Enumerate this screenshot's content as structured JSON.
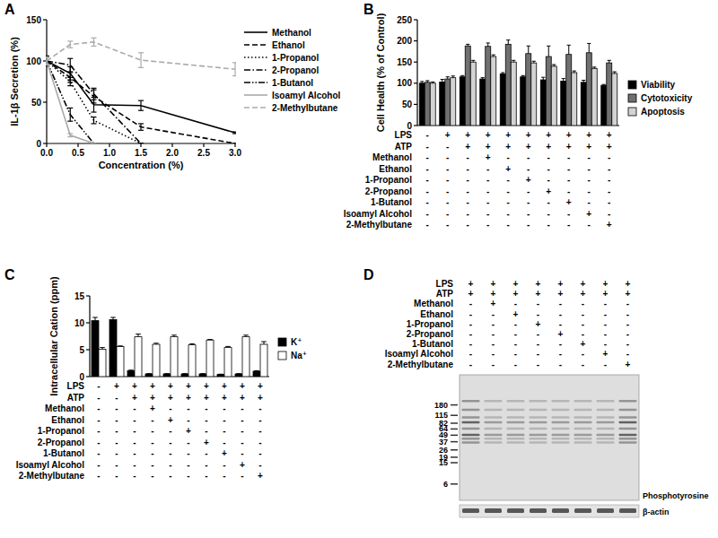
{
  "chart_data": [
    {
      "type": "line",
      "panel": "A",
      "x_label": "Concentration (%)",
      "y_label": "IL-1β Secretion (%)",
      "x": [
        0,
        0.375,
        0.75,
        1.5,
        3.0
      ],
      "xlim": [
        0,
        3
      ],
      "xticks": [
        {
          "value": 0,
          "label": "0.0"
        },
        0.5,
        {
          "value": 1,
          "label": "1.0"
        },
        1.5,
        {
          "value": 2,
          "label": "2.0"
        },
        2.5,
        {
          "value": 3,
          "label": "3.0"
        }
      ],
      "ylim": [
        0,
        150
      ],
      "yticks": [
        0,
        50,
        100,
        150
      ],
      "legend": "right",
      "series": [
        {
          "name": "Methanol",
          "color": "#000000",
          "line_style": "solid",
          "values": [
            100,
            85,
            47,
            46,
            13
          ],
          "errors": [
            6,
            8,
            9,
            6,
            1
          ]
        },
        {
          "name": "Ethanol",
          "color": "#000000",
          "line_style": "dashed",
          "values": [
            100,
            80,
            57,
            20,
            0
          ],
          "errors": [
            5,
            6,
            8,
            4,
            0
          ]
        },
        {
          "name": "1-Propanol",
          "color": "#000000",
          "line_style": "dotted",
          "values": [
            100,
            75,
            28,
            0,
            null
          ],
          "errors": [
            5,
            5,
            4,
            0,
            null
          ]
        },
        {
          "name": "2-Propanol",
          "color": "#000000",
          "line_style": "dashdot",
          "values": [
            100,
            95,
            60,
            0,
            null
          ],
          "errors": [
            5,
            8,
            7,
            0,
            null
          ]
        },
        {
          "name": "1-Butanol",
          "color": "#000000",
          "line_style": "dashdotdot",
          "values": [
            100,
            35,
            0,
            null,
            null
          ],
          "errors": [
            6,
            8,
            0,
            null,
            null
          ]
        },
        {
          "name": "Isoamyl Alcohol",
          "color": "#aaaaaa",
          "line_style": "solid",
          "values": [
            100,
            10,
            0,
            null,
            null
          ],
          "errors": [
            4,
            2,
            0,
            null,
            null
          ]
        },
        {
          "name": "2-Methylbutane",
          "color": "#aaaaaa",
          "line_style": "dashed",
          "values": [
            100,
            120,
            123,
            101,
            90
          ],
          "errors": [
            5,
            4,
            5,
            9,
            8
          ]
        }
      ]
    },
    {
      "type": "bar",
      "panel": "B",
      "y_label": "Cell Health (% of Control)",
      "categories": [
        null,
        null,
        null,
        null,
        null,
        null,
        null,
        null,
        null,
        null
      ],
      "ylim": [
        0,
        250
      ],
      "yticks": [
        0,
        50,
        100,
        150,
        200,
        250
      ],
      "legend": "right",
      "tick_labels": "y",
      "series": [
        {
          "name": "Viability",
          "color": "#000000",
          "values": [
            100,
            103,
            115,
            110,
            122,
            115,
            108,
            105,
            102,
            95
          ],
          "errors": [
            4,
            6,
            3,
            3,
            3,
            3,
            6,
            6,
            5,
            2
          ]
        },
        {
          "name": "Cytotoxicity",
          "color": "#707070",
          "values": [
            102,
            110,
            188,
            187,
            192,
            170,
            163,
            168,
            172,
            148
          ],
          "errors": [
            4,
            5,
            4,
            8,
            10,
            18,
            25,
            22,
            22,
            6
          ]
        },
        {
          "name": "Apoptosis",
          "color": "#d3d3d3",
          "values": [
            100,
            113,
            150,
            163,
            150,
            148,
            140,
            125,
            135,
            123
          ],
          "errors": [
            3,
            4,
            4,
            4,
            4,
            4,
            4,
            4,
            3,
            4
          ]
        }
      ],
      "conditions": {
        "rows": [
          {
            "label": "LPS",
            "signs": [
              "-",
              "+",
              "+",
              "+",
              "+",
              "+",
              "+",
              "+",
              "+",
              "+"
            ]
          },
          {
            "label": "ATP",
            "signs": [
              "-",
              "-",
              "+",
              "+",
              "+",
              "+",
              "+",
              "+",
              "+",
              "+"
            ]
          },
          {
            "label": "Methanol",
            "signs": [
              "-",
              "-",
              "-",
              "+",
              "-",
              "-",
              "-",
              "-",
              "-",
              "-"
            ]
          },
          {
            "label": "Ethanol",
            "signs": [
              "-",
              "-",
              "-",
              "-",
              "+",
              "-",
              "-",
              "-",
              "-",
              "-"
            ]
          },
          {
            "label": "1-Propanol",
            "signs": [
              "-",
              "-",
              "-",
              "-",
              "-",
              "+",
              "-",
              "-",
              "-",
              "-"
            ]
          },
          {
            "label": "2-Propanol",
            "signs": [
              "-",
              "-",
              "-",
              "-",
              "-",
              "-",
              "+",
              "-",
              "-",
              "-"
            ]
          },
          {
            "label": "1-Butanol",
            "signs": [
              "-",
              "-",
              "-",
              "-",
              "-",
              "-",
              "-",
              "+",
              "-",
              "-"
            ]
          },
          {
            "label": "Isoamyl Alcohol",
            "signs": [
              "-",
              "-",
              "-",
              "-",
              "-",
              "-",
              "-",
              "-",
              "+",
              "-"
            ]
          },
          {
            "label": "2-Methylbutane",
            "signs": [
              "-",
              "-",
              "-",
              "-",
              "-",
              "-",
              "-",
              "-",
              "-",
              "+"
            ]
          }
        ]
      }
    },
    {
      "type": "bar",
      "panel": "C",
      "y_label": "Intracellular Cation (ppm)",
      "categories": [
        null,
        null,
        null,
        null,
        null,
        null,
        null,
        null,
        null,
        null
      ],
      "ylim": [
        0,
        15
      ],
      "yticks": [
        0,
        5,
        10,
        15
      ],
      "legend": "right",
      "tick_labels": "y",
      "series": [
        {
          "name": "K⁺",
          "color": "#000000",
          "values": [
            10.4,
            10.6,
            1.1,
            0.5,
            0.5,
            0.5,
            0.5,
            0.4,
            0.5,
            1.0
          ],
          "errors": [
            0.6,
            0.4,
            0.1,
            0.05,
            0.05,
            0.05,
            0.05,
            0.05,
            0.05,
            0.1
          ]
        },
        {
          "name": "Na⁺",
          "color": "#ffffff",
          "values": [
            5.1,
            5.6,
            7.4,
            6.0,
            7.4,
            5.9,
            6.8,
            5.4,
            7.4,
            6.0
          ],
          "errors": [
            0.3,
            0.1,
            0.5,
            0.2,
            0.3,
            0.2,
            0.1,
            0.2,
            0.3,
            0.5
          ]
        }
      ],
      "conditions": {
        "rows": [
          {
            "label": "LPS",
            "signs": [
              "-",
              "+",
              "+",
              "+",
              "+",
              "+",
              "+",
              "+",
              "+",
              "+"
            ]
          },
          {
            "label": "ATP",
            "signs": [
              "-",
              "-",
              "+",
              "+",
              "+",
              "+",
              "+",
              "+",
              "+",
              "+"
            ]
          },
          {
            "label": "Methanol",
            "signs": [
              "-",
              "-",
              "-",
              "+",
              "-",
              "-",
              "-",
              "-",
              "-",
              "-"
            ]
          },
          {
            "label": "Ethanol",
            "signs": [
              "-",
              "-",
              "-",
              "-",
              "+",
              "-",
              "-",
              "-",
              "-",
              "-"
            ]
          },
          {
            "label": "1-Propanol",
            "signs": [
              "-",
              "-",
              "-",
              "-",
              "-",
              "+",
              "-",
              "-",
              "-",
              "-"
            ]
          },
          {
            "label": "2-Propanol",
            "signs": [
              "-",
              "-",
              "-",
              "-",
              "-",
              "-",
              "+",
              "-",
              "-",
              "-"
            ]
          },
          {
            "label": "1-Butanol",
            "signs": [
              "-",
              "-",
              "-",
              "-",
              "-",
              "-",
              "-",
              "+",
              "-",
              "-"
            ]
          },
          {
            "label": "Isoamyl Alcohol",
            "signs": [
              "-",
              "-",
              "-",
              "-",
              "-",
              "-",
              "-",
              "-",
              "+",
              "-"
            ]
          },
          {
            "label": "2-Methylbutane",
            "signs": [
              "-",
              "-",
              "-",
              "-",
              "-",
              "-",
              "-",
              "-",
              "-",
              "+"
            ]
          }
        ]
      }
    }
  ],
  "blot": {
    "panel": "D",
    "stain": "Phosphotyrosine",
    "loading_control": "β-actin",
    "markers": [
      180,
      115,
      82,
      64,
      49,
      37,
      26,
      19,
      15,
      6
    ],
    "conditions": {
      "rows": [
        {
          "label": "LPS",
          "signs": [
            "+",
            "+",
            "+",
            "+",
            "+",
            "+",
            "+",
            "+"
          ]
        },
        {
          "label": "ATP",
          "signs": [
            "+",
            "+",
            "+",
            "+",
            "+",
            "+",
            "+",
            "+"
          ]
        },
        {
          "label": "Methanol",
          "signs": [
            "-",
            "+",
            "-",
            "-",
            "-",
            "-",
            "-",
            "-"
          ]
        },
        {
          "label": "Ethanol",
          "signs": [
            "-",
            "-",
            "+",
            "-",
            "-",
            "-",
            "-",
            "-"
          ]
        },
        {
          "label": "1-Propanol",
          "signs": [
            "-",
            "-",
            "-",
            "+",
            "-",
            "-",
            "-",
            "-"
          ]
        },
        {
          "label": "2-Propanol",
          "signs": [
            "-",
            "-",
            "-",
            "-",
            "+",
            "-",
            "-",
            "-"
          ]
        },
        {
          "label": "1-Butanol",
          "signs": [
            "-",
            "-",
            "-",
            "-",
            "-",
            "+",
            "-",
            "-"
          ]
        },
        {
          "label": "Isoamyl Alcohol",
          "signs": [
            "-",
            "-",
            "-",
            "-",
            "-",
            "-",
            "+",
            "-"
          ]
        },
        {
          "label": "2-Methylbutane",
          "signs": [
            "-",
            "-",
            "-",
            "-",
            "-",
            "-",
            "-",
            "+"
          ]
        }
      ]
    }
  }
}
